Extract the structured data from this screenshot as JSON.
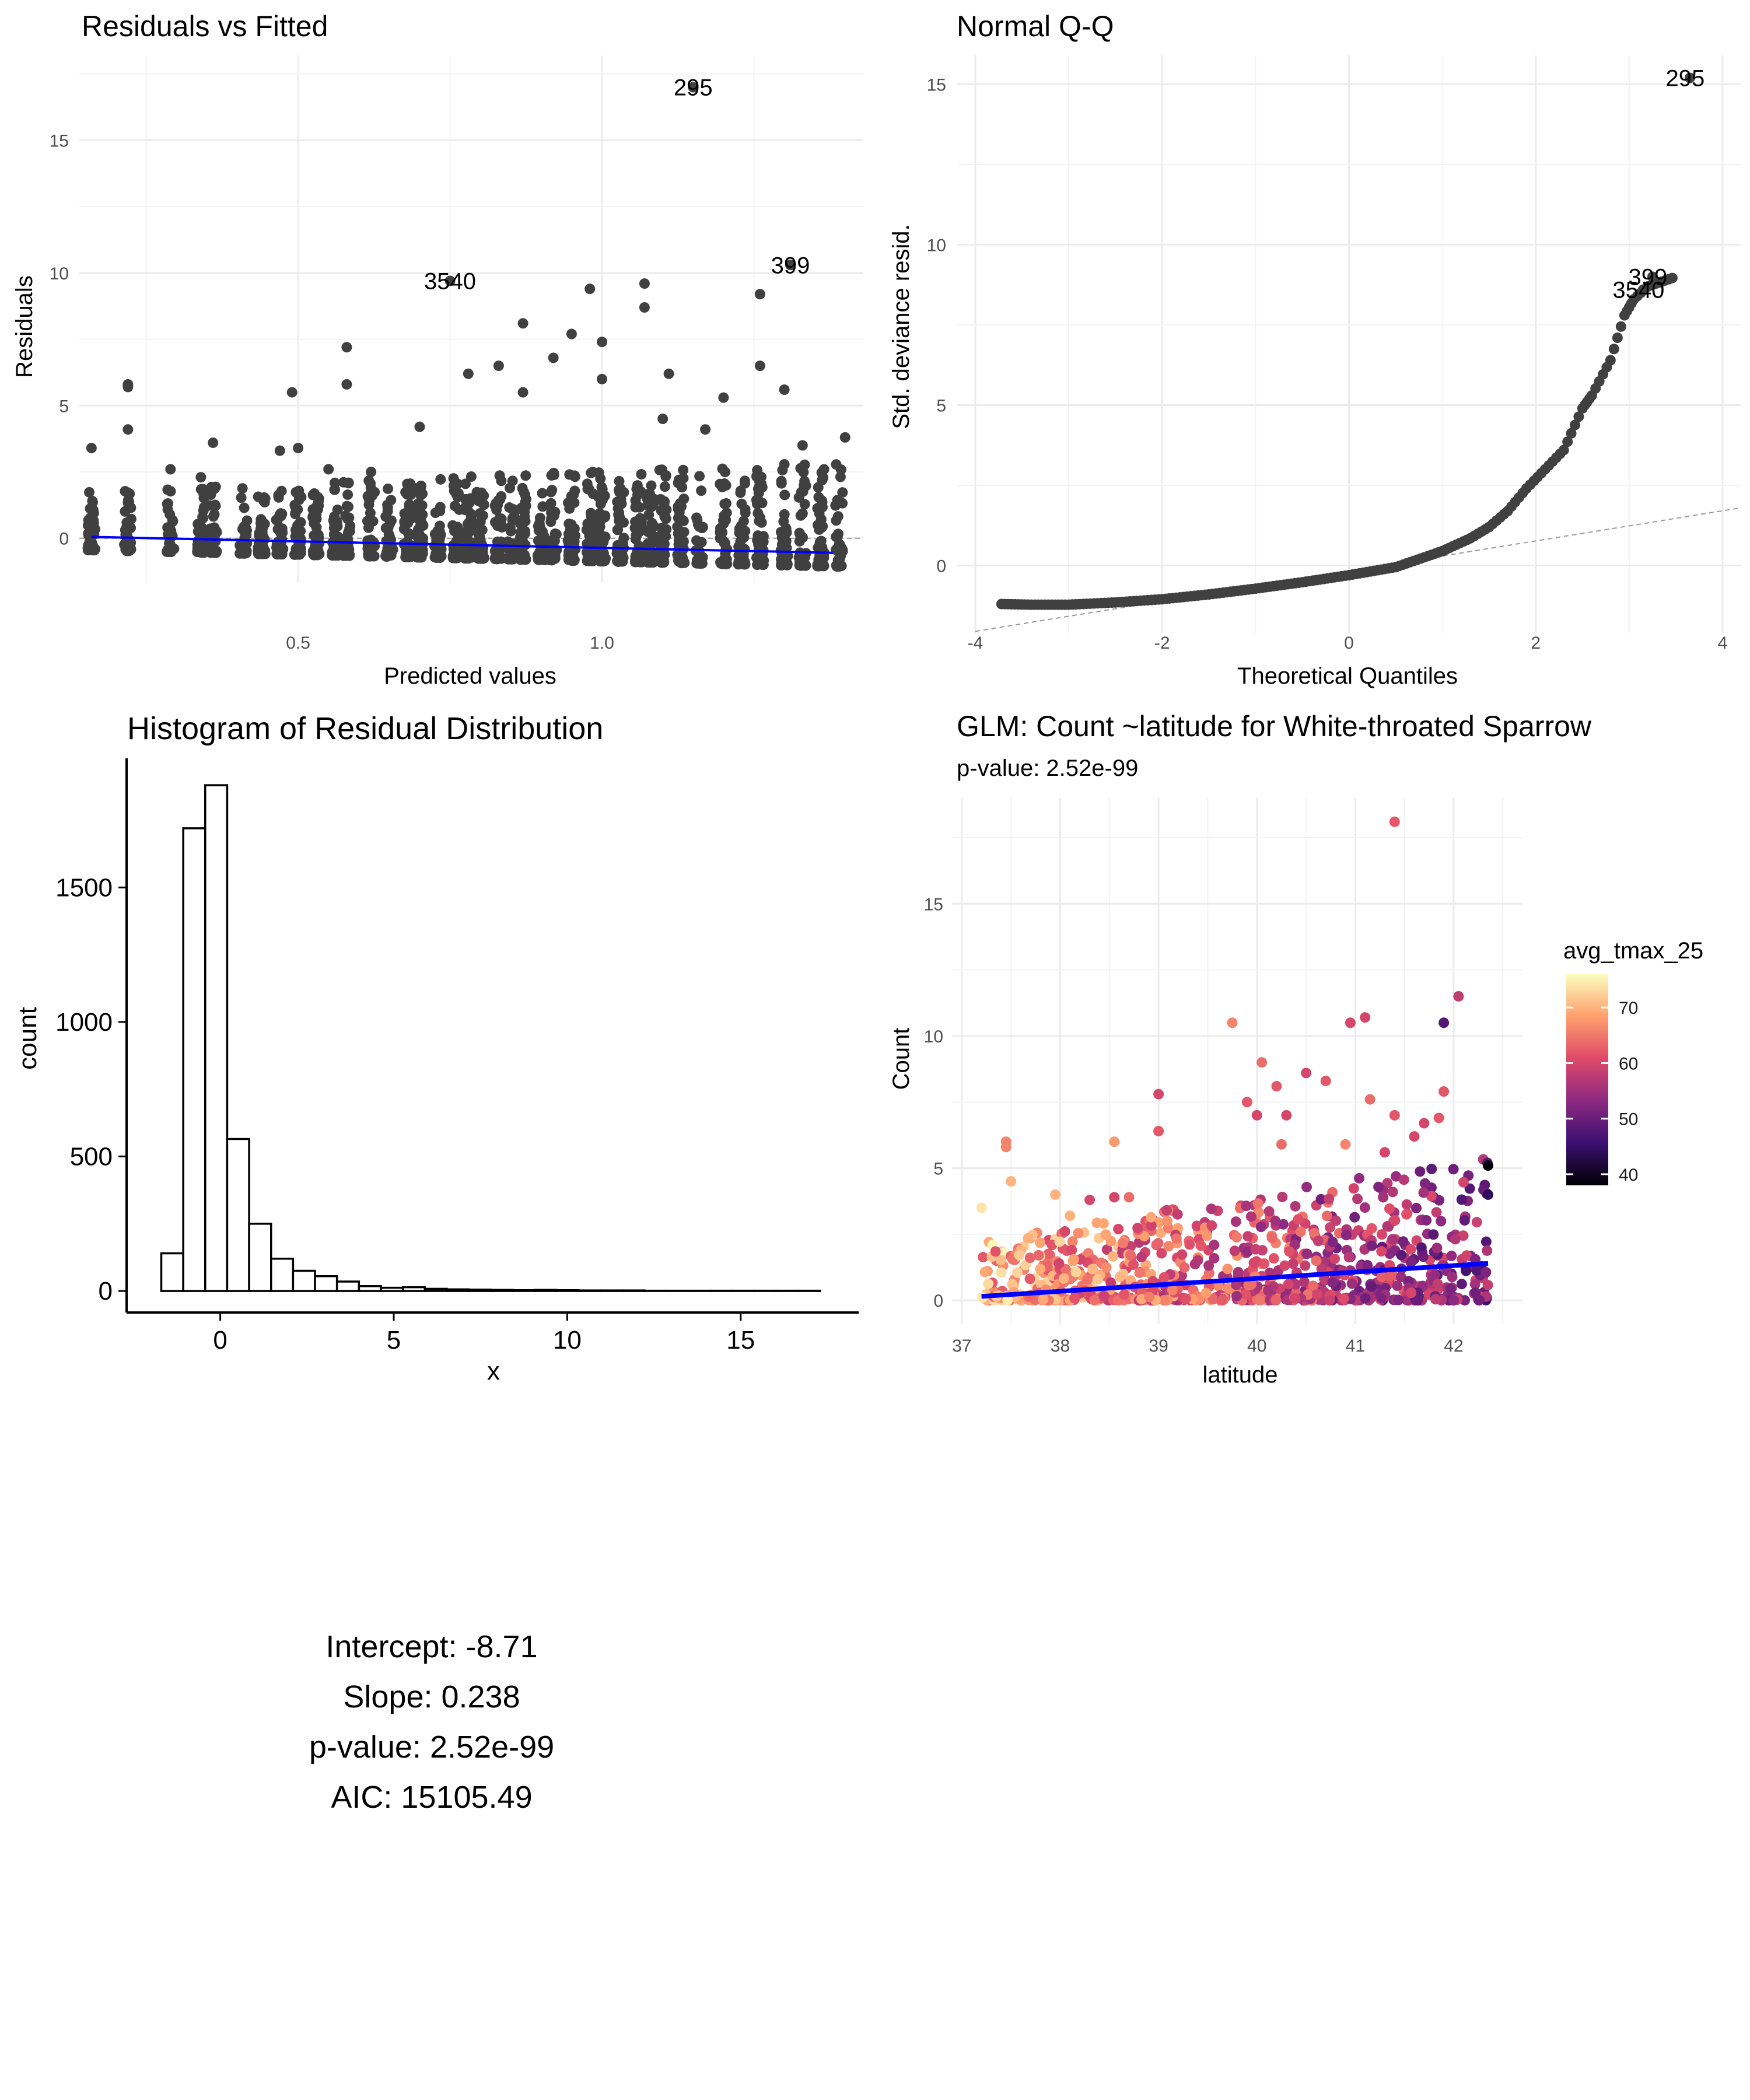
{
  "stats": {
    "intercept": "Intercept: -8.71",
    "slope": "Slope: 0.238",
    "pvalue": "p-value: 2.52e-99",
    "aic": "AIC: 15105.49"
  },
  "colors": {
    "points": "#404040",
    "blue_line": "#0000ff",
    "grid": "#ebebeb",
    "ref_line": "#9a9a9a",
    "palette_magma": [
      "#000004",
      "#3b0f70",
      "#8c2981",
      "#de4968",
      "#fe9f6d",
      "#fcfdbf"
    ]
  },
  "chart_data": [
    {
      "type": "scatter",
      "title": "Residuals vs Fitted",
      "xlabel": "Predicted values",
      "ylabel": "Residuals",
      "xlim": [
        0.14,
        1.43
      ],
      "ylim": [
        -1.7,
        18.2
      ],
      "xticks": [
        0.5,
        1.0
      ],
      "xtick_labels": [
        "0.5",
        "1.0"
      ],
      "yticks": [
        0,
        5,
        10,
        15
      ],
      "ytick_labels": [
        "0",
        "5",
        "10",
        "15"
      ],
      "grid": true,
      "reference_line": {
        "y": 0,
        "style": "dashed"
      },
      "smooth_line": {
        "x": [
          0.16,
          1.38
        ],
        "y": [
          0.05,
          -0.55
        ]
      },
      "labeled_points": [
        {
          "label": "295",
          "x": 1.15,
          "y": 17.0
        },
        {
          "label": "3540",
          "x": 0.75,
          "y": 9.7
        },
        {
          "label": "399",
          "x": 1.31,
          "y": 10.3
        }
      ],
      "points": [
        [
          0.22,
          5.7
        ],
        [
          0.22,
          5.8
        ],
        [
          0.22,
          4.1
        ],
        [
          0.58,
          7.2
        ],
        [
          0.58,
          5.8
        ],
        [
          0.49,
          5.5
        ],
        [
          0.87,
          8.1
        ],
        [
          0.95,
          7.7
        ],
        [
          0.98,
          9.4
        ],
        [
          1.07,
          9.6
        ],
        [
          1.07,
          8.7
        ],
        [
          1.0,
          7.4
        ],
        [
          1.26,
          9.2
        ],
        [
          0.83,
          6.5
        ],
        [
          0.78,
          6.2
        ],
        [
          1.26,
          6.5
        ],
        [
          0.92,
          6.8
        ],
        [
          1.11,
          6.2
        ],
        [
          1.0,
          6.0
        ],
        [
          1.2,
          5.3
        ],
        [
          1.3,
          5.6
        ],
        [
          0.36,
          3.6
        ],
        [
          0.16,
          3.4
        ],
        [
          0.29,
          2.6
        ],
        [
          0.47,
          3.3
        ],
        [
          0.5,
          3.4
        ],
        [
          0.7,
          4.2
        ],
        [
          0.87,
          5.5
        ],
        [
          1.1,
          4.5
        ],
        [
          1.4,
          3.8
        ],
        [
          0.62,
          2.5
        ],
        [
          0.34,
          2.3
        ],
        [
          0.55,
          2.6
        ],
        [
          1.33,
          3.5
        ],
        [
          1.17,
          4.1
        ]
      ]
    },
    {
      "type": "scatter",
      "title": "Normal Q-Q",
      "xlabel": "Theoretical Quantiles",
      "ylabel": "Std. deviance resid.",
      "xlim": [
        -4.2,
        4.2
      ],
      "ylim": [
        -2.1,
        15.9
      ],
      "xticks": [
        -4,
        -2,
        0,
        2,
        4
      ],
      "xtick_labels": [
        "-4",
        "-2",
        "0",
        "2",
        "4"
      ],
      "yticks": [
        0,
        5,
        10,
        15
      ],
      "ytick_labels": [
        "0",
        "5",
        "10",
        "15"
      ],
      "grid": true,
      "reference_line": {
        "x": [
          -4.0,
          4.2
        ],
        "y": [
          -2.05,
          1.8
        ],
        "style": "dashed"
      },
      "curve": {
        "x": [
          -3.72,
          -3.4,
          -3.0,
          -2.5,
          -2.0,
          -1.5,
          -1.0,
          -0.5,
          0.0,
          0.5,
          1.0,
          1.3,
          1.5,
          1.7,
          1.9,
          2.1,
          2.3,
          2.5,
          2.6,
          2.8,
          2.95,
          3.05,
          3.2,
          3.5,
          3.65
        ],
        "y": [
          -1.2,
          -1.22,
          -1.22,
          -1.15,
          -1.05,
          -0.9,
          -0.72,
          -0.52,
          -0.3,
          -0.05,
          0.45,
          0.85,
          1.2,
          1.7,
          2.4,
          3.0,
          3.6,
          4.9,
          5.3,
          6.4,
          7.8,
          8.3,
          8.7,
          9.0,
          15.2
        ]
      },
      "labeled_points": [
        {
          "label": "295",
          "x": 3.65,
          "y": 15.2
        },
        {
          "label": "399",
          "x": 3.25,
          "y": 9.0
        },
        {
          "label": "3540",
          "x": 3.15,
          "y": 8.6
        }
      ]
    },
    {
      "type": "bar",
      "title": "Histogram of Residual Distribution",
      "xlabel": "x",
      "ylabel": "count",
      "xlim": [
        -2.7,
        18.4
      ],
      "ylim": [
        -80,
        1980
      ],
      "xticks": [
        0,
        5,
        10,
        15
      ],
      "xtick_labels": [
        "0",
        "5",
        "10",
        "15"
      ],
      "yticks": [
        0,
        500,
        1000,
        1500
      ],
      "ytick_labels": [
        "0",
        "500",
        "1000",
        "1500"
      ],
      "grid": false,
      "bin_start": -1.7,
      "bin_width": 0.633,
      "values": [
        140,
        1720,
        1880,
        565,
        250,
        120,
        75,
        55,
        35,
        18,
        12,
        14,
        8,
        6,
        5,
        4,
        3,
        4,
        3,
        2,
        2,
        2,
        1,
        1,
        1,
        1,
        1,
        1,
        1,
        1
      ]
    },
    {
      "type": "scatter",
      "title": "GLM: Count ~latitude for White-throated Sparrow",
      "subtitle": "p-value: 2.52e-99",
      "xlabel": "latitude",
      "ylabel": "Count",
      "xlim": [
        36.9,
        42.7
      ],
      "ylim": [
        -0.9,
        19.0
      ],
      "xticks": [
        37,
        38,
        39,
        40,
        41,
        42
      ],
      "xtick_labels": [
        "37",
        "38",
        "39",
        "40",
        "41",
        "42"
      ],
      "yticks": [
        0,
        5,
        10,
        15
      ],
      "ytick_labels": [
        "0",
        "5",
        "10",
        "15"
      ],
      "grid": true,
      "fit_line": {
        "x": [
          37.2,
          42.35
        ],
        "y": [
          0.15,
          1.4
        ]
      },
      "legend": {
        "title": "avg_tmax_25",
        "range": [
          38,
          76
        ],
        "ticks": [
          40,
          50,
          60,
          70
        ],
        "tick_labels": [
          "40",
          "50",
          "60",
          "70"
        ],
        "placement": "right"
      },
      "points": [
        [
          41.4,
          18.1,
          62
        ],
        [
          42.05,
          11.5,
          58
        ],
        [
          40.95,
          10.5,
          60
        ],
        [
          41.1,
          10.7,
          60
        ],
        [
          41.9,
          10.5,
          48
        ],
        [
          40.05,
          9.0,
          64
        ],
        [
          40.2,
          8.1,
          62
        ],
        [
          40.5,
          8.6,
          60
        ],
        [
          40.7,
          8.3,
          62
        ],
        [
          39.75,
          10.5,
          66
        ],
        [
          39.0,
          7.8,
          60
        ],
        [
          39.9,
          7.5,
          62
        ],
        [
          40.0,
          7.0,
          60
        ],
        [
          40.3,
          7.0,
          60
        ],
        [
          40.25,
          5.9,
          64
        ],
        [
          41.15,
          7.6,
          64
        ],
        [
          41.4,
          7.0,
          62
        ],
        [
          41.7,
          6.7,
          60
        ],
        [
          41.9,
          7.9,
          62
        ],
        [
          41.85,
          6.9,
          62
        ],
        [
          37.45,
          6.0,
          66
        ],
        [
          37.45,
          5.8,
          66
        ],
        [
          38.55,
          6.0,
          68
        ],
        [
          38.55,
          3.9,
          60
        ],
        [
          38.7,
          3.9,
          64
        ],
        [
          38.3,
          3.8,
          60
        ],
        [
          39.0,
          6.4,
          62
        ],
        [
          37.95,
          4.0,
          70
        ],
        [
          37.2,
          3.5,
          74
        ],
        [
          37.5,
          4.5,
          70
        ],
        [
          38.1,
          3.2,
          70
        ],
        [
          42.35,
          5.1,
          38
        ],
        [
          42.35,
          4.0,
          44
        ],
        [
          40.9,
          5.9,
          66
        ],
        [
          41.3,
          5.6,
          60
        ],
        [
          41.6,
          6.2,
          60
        ]
      ]
    }
  ]
}
